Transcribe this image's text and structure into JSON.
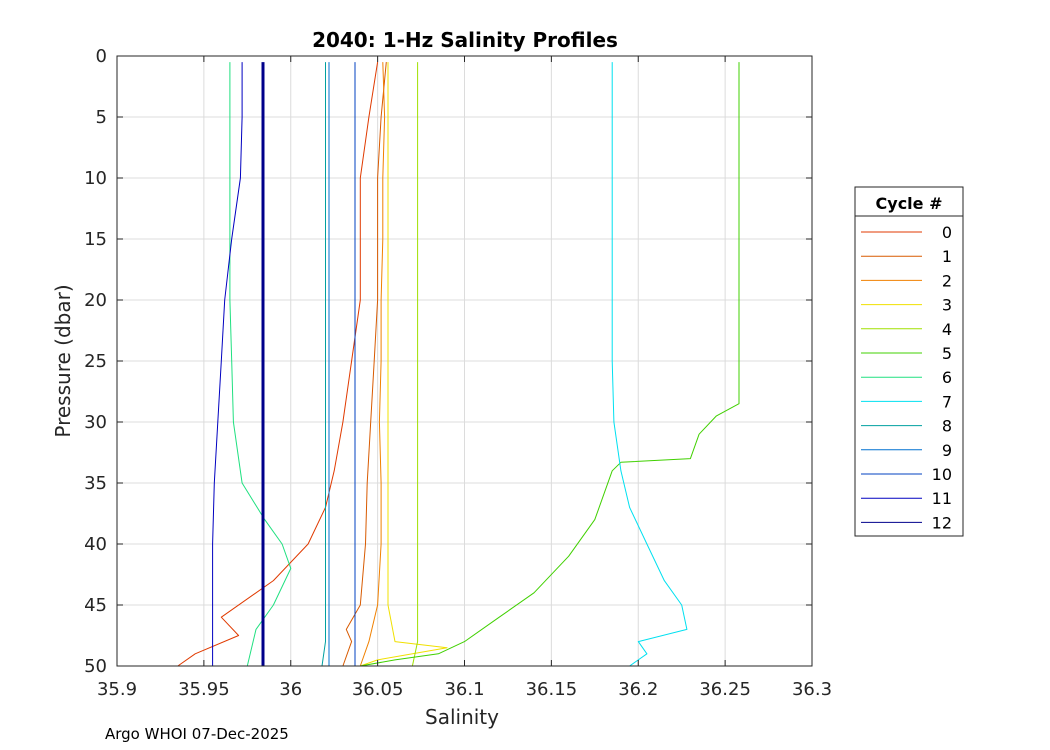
{
  "chart_data": {
    "type": "line",
    "title": "2040: 1-Hz Salinity Profiles",
    "xlabel": "Salinity",
    "ylabel": "Pressure (dbar)",
    "xlim": [
      35.9,
      36.3
    ],
    "ylim": [
      0,
      50
    ],
    "y_reversed": true,
    "grid": true,
    "x_ticks": [
      "35.9",
      "35.95",
      "36",
      "36.05",
      "36.1",
      "36.15",
      "36.2",
      "36.25",
      "36.3"
    ],
    "y_ticks": [
      "0",
      "5",
      "10",
      "15",
      "20",
      "25",
      "30",
      "35",
      "40",
      "45",
      "50"
    ],
    "legend_title": "Cycle #",
    "legend_position": "right",
    "series": [
      {
        "name": "0",
        "color": "#e03a00",
        "points": [
          [
            36.05,
            0.5
          ],
          [
            36.045,
            5
          ],
          [
            36.04,
            10
          ],
          [
            36.04,
            15
          ],
          [
            36.04,
            20
          ],
          [
            36.035,
            25
          ],
          [
            36.03,
            30
          ],
          [
            36.025,
            34
          ],
          [
            36.02,
            37
          ],
          [
            36.01,
            40
          ],
          [
            35.99,
            43
          ],
          [
            35.96,
            46
          ],
          [
            35.97,
            47.5
          ],
          [
            35.945,
            49
          ],
          [
            35.935,
            50
          ]
        ]
      },
      {
        "name": "1",
        "color": "#d85a00",
        "points": [
          [
            36.055,
            0.5
          ],
          [
            36.052,
            5
          ],
          [
            36.05,
            10
          ],
          [
            36.05,
            15
          ],
          [
            36.05,
            20
          ],
          [
            36.048,
            25
          ],
          [
            36.046,
            30
          ],
          [
            36.044,
            35
          ],
          [
            36.043,
            40
          ],
          [
            36.04,
            45
          ],
          [
            36.032,
            47
          ],
          [
            36.035,
            48
          ],
          [
            36.03,
            50
          ]
        ]
      },
      {
        "name": "2",
        "color": "#f08000",
        "points": [
          [
            36.053,
            0.5
          ],
          [
            36.054,
            5
          ],
          [
            36.053,
            10
          ],
          [
            36.053,
            15
          ],
          [
            36.052,
            20
          ],
          [
            36.052,
            25
          ],
          [
            36.051,
            30
          ],
          [
            36.052,
            35
          ],
          [
            36.052,
            40
          ],
          [
            36.05,
            45
          ],
          [
            36.045,
            48
          ],
          [
            36.04,
            50
          ]
        ]
      },
      {
        "name": "3",
        "color": "#f0e000",
        "points": [
          [
            36.056,
            0.5
          ],
          [
            36.056,
            5
          ],
          [
            36.056,
            10
          ],
          [
            36.056,
            15
          ],
          [
            36.056,
            20
          ],
          [
            36.056,
            25
          ],
          [
            36.056,
            30
          ],
          [
            36.056,
            35
          ],
          [
            36.056,
            40
          ],
          [
            36.056,
            45
          ],
          [
            36.06,
            48
          ],
          [
            36.09,
            48.5
          ],
          [
            36.05,
            49.5
          ],
          [
            36.04,
            50
          ]
        ]
      },
      {
        "name": "4",
        "color": "#a0e000",
        "points": [
          [
            36.073,
            0.5
          ],
          [
            36.073,
            5
          ],
          [
            36.073,
            10
          ],
          [
            36.073,
            15
          ],
          [
            36.073,
            20
          ],
          [
            36.073,
            25
          ],
          [
            36.073,
            30
          ],
          [
            36.073,
            35
          ],
          [
            36.073,
            40
          ],
          [
            36.073,
            45
          ],
          [
            36.073,
            48
          ],
          [
            36.07,
            50
          ]
        ]
      },
      {
        "name": "5",
        "color": "#40d000",
        "points": [
          [
            36.258,
            0.5
          ],
          [
            36.258,
            5
          ],
          [
            36.258,
            10
          ],
          [
            36.258,
            15
          ],
          [
            36.258,
            20
          ],
          [
            36.258,
            25
          ],
          [
            36.258,
            28.5
          ],
          [
            36.245,
            29.5
          ],
          [
            36.235,
            31
          ],
          [
            36.23,
            33
          ],
          [
            36.19,
            33.3
          ],
          [
            36.185,
            34
          ],
          [
            36.175,
            38
          ],
          [
            36.16,
            41
          ],
          [
            36.14,
            44
          ],
          [
            36.12,
            46
          ],
          [
            36.1,
            48
          ],
          [
            36.085,
            49
          ],
          [
            36.06,
            49.5
          ],
          [
            36.04,
            50
          ]
        ]
      },
      {
        "name": "6",
        "color": "#20e080",
        "points": [
          [
            35.965,
            0.5
          ],
          [
            35.965,
            5
          ],
          [
            35.965,
            10
          ],
          [
            35.965,
            15
          ],
          [
            35.965,
            20
          ],
          [
            35.966,
            25
          ],
          [
            35.967,
            30
          ],
          [
            35.972,
            35
          ],
          [
            35.985,
            38
          ],
          [
            35.995,
            40
          ],
          [
            36.0,
            42
          ],
          [
            35.99,
            45
          ],
          [
            35.98,
            47
          ],
          [
            35.975,
            50
          ]
        ]
      },
      {
        "name": "7",
        "color": "#00e0f0",
        "points": [
          [
            36.185,
            0.5
          ],
          [
            36.185,
            5
          ],
          [
            36.185,
            10
          ],
          [
            36.185,
            15
          ],
          [
            36.185,
            20
          ],
          [
            36.185,
            25
          ],
          [
            36.186,
            30
          ],
          [
            36.19,
            34
          ],
          [
            36.195,
            37
          ],
          [
            36.205,
            40
          ],
          [
            36.215,
            43
          ],
          [
            36.225,
            45
          ],
          [
            36.228,
            47
          ],
          [
            36.2,
            48
          ],
          [
            36.205,
            49
          ],
          [
            36.195,
            50
          ]
        ]
      },
      {
        "name": "8",
        "color": "#00a0a0",
        "points": [
          [
            36.02,
            0.5
          ],
          [
            36.02,
            5
          ],
          [
            36.02,
            10
          ],
          [
            36.02,
            15
          ],
          [
            36.02,
            20
          ],
          [
            36.02,
            25
          ],
          [
            36.02,
            30
          ],
          [
            36.02,
            35
          ],
          [
            36.02,
            40
          ],
          [
            36.02,
            45
          ],
          [
            36.02,
            48
          ],
          [
            36.018,
            50
          ]
        ]
      },
      {
        "name": "9",
        "color": "#0070d0",
        "points": [
          [
            36.022,
            0.5
          ],
          [
            36.022,
            5
          ],
          [
            36.022,
            10
          ],
          [
            36.022,
            15
          ],
          [
            36.022,
            20
          ],
          [
            36.022,
            25
          ],
          [
            36.022,
            30
          ],
          [
            36.022,
            35
          ],
          [
            36.022,
            40
          ],
          [
            36.022,
            45
          ],
          [
            36.022,
            48
          ],
          [
            36.022,
            50
          ]
        ]
      },
      {
        "name": "10",
        "color": "#0040c0",
        "points": [
          [
            36.037,
            0.5
          ],
          [
            36.037,
            5
          ],
          [
            36.037,
            10
          ],
          [
            36.037,
            15
          ],
          [
            36.037,
            20
          ],
          [
            36.037,
            25
          ],
          [
            36.037,
            30
          ],
          [
            36.037,
            35
          ],
          [
            36.037,
            40
          ],
          [
            36.037,
            45
          ],
          [
            36.037,
            48
          ],
          [
            36.037,
            50
          ]
        ]
      },
      {
        "name": "11",
        "color": "#0000c0",
        "points": [
          [
            35.972,
            0.5
          ],
          [
            35.972,
            5
          ],
          [
            35.971,
            10
          ],
          [
            35.966,
            15
          ],
          [
            35.962,
            20
          ],
          [
            35.96,
            25
          ],
          [
            35.958,
            30
          ],
          [
            35.956,
            35
          ],
          [
            35.955,
            40
          ],
          [
            35.955,
            45
          ],
          [
            35.955,
            48
          ],
          [
            35.955,
            50
          ]
        ]
      },
      {
        "name": "12",
        "color": "#00008b",
        "points": [
          [
            35.984,
            0.5
          ],
          [
            35.984,
            5
          ],
          [
            35.984,
            10
          ],
          [
            35.984,
            15
          ],
          [
            35.984,
            20
          ],
          [
            35.984,
            25
          ],
          [
            35.984,
            30
          ],
          [
            35.984,
            35
          ],
          [
            35.984,
            40
          ],
          [
            35.984,
            45
          ],
          [
            35.984,
            48
          ],
          [
            35.984,
            50
          ]
        ]
      }
    ]
  },
  "footer": "Argo WHOI 07-Dec-2025"
}
